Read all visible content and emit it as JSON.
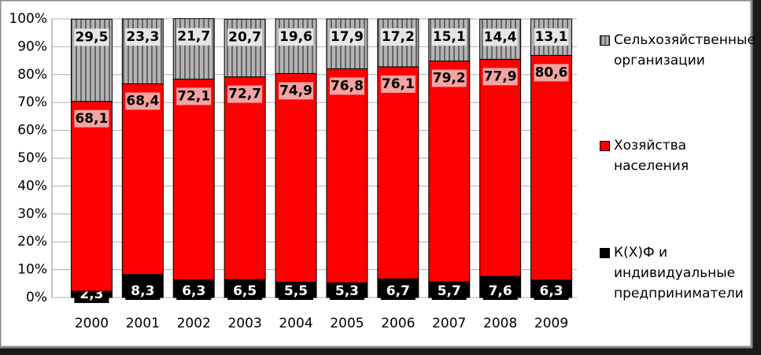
{
  "chart_data": {
    "type": "stacked-bar",
    "categories": [
      "2000",
      "2001",
      "2002",
      "2003",
      "2004",
      "2005",
      "2006",
      "2007",
      "2008",
      "2009"
    ],
    "series": [
      {
        "name": "К(Х)Ф и индивидуальные предприниматели",
        "color": "#000000",
        "values": [
          2.3,
          8.3,
          6.3,
          6.5,
          5.5,
          5.3,
          6.7,
          5.7,
          7.6,
          6.3
        ],
        "value_labels": [
          "2,3",
          "8,3",
          "6,3",
          "6,5",
          "5,5",
          "5,3",
          "6,7",
          "5,7",
          "7,6",
          "6,3"
        ]
      },
      {
        "name": "Хозяйства населения",
        "color": "#ff0000",
        "values": [
          68.1,
          68.4,
          72.1,
          72.7,
          74.9,
          76.8,
          76.1,
          79.2,
          77.9,
          80.6
        ],
        "value_labels": [
          "68,1",
          "68,4",
          "72,1",
          "72,7",
          "74,9",
          "76,8",
          "76,1",
          "79,2",
          "77,9",
          "80,6"
        ]
      },
      {
        "name": "Сельхозяйственные организации",
        "color": "#b4b4b4",
        "values": [
          29.5,
          23.3,
          21.7,
          20.7,
          19.6,
          17.9,
          17.2,
          15.1,
          14.4,
          13.1
        ],
        "value_labels": [
          "29,5",
          "23,3",
          "21,7",
          "20,7",
          "19,6",
          "17,9",
          "17,2",
          "15,1",
          "14,4",
          "13,1"
        ]
      }
    ],
    "ylim": [
      0,
      100
    ],
    "yticks": [
      {
        "value": 0,
        "label": "0%"
      },
      {
        "value": 10,
        "label": "10%"
      },
      {
        "value": 20,
        "label": "20%"
      },
      {
        "value": 30,
        "label": "30%"
      },
      {
        "value": 40,
        "label": "40%"
      },
      {
        "value": 50,
        "label": "50%"
      },
      {
        "value": 60,
        "label": "60%"
      },
      {
        "value": 70,
        "label": "70%"
      },
      {
        "value": 80,
        "label": "80%"
      },
      {
        "value": 90,
        "label": "90%"
      },
      {
        "value": 100,
        "label": "100%"
      }
    ],
    "grid": true
  }
}
